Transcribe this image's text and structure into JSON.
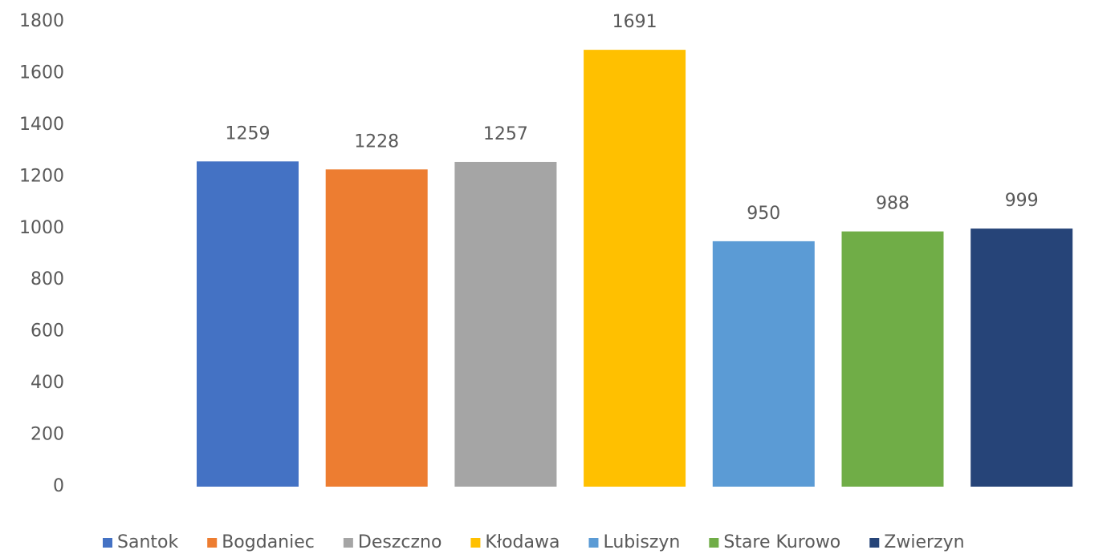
{
  "chart_data": {
    "type": "bar",
    "series": [
      {
        "name": "Santok",
        "color": "#4472c4",
        "values": [
          1259
        ]
      },
      {
        "name": "Bogdaniec",
        "color": "#ed7d31",
        "values": [
          1228
        ]
      },
      {
        "name": "Deszczno",
        "color": "#a5a5a5",
        "values": [
          1257
        ]
      },
      {
        "name": "Kłodawa",
        "color": "#ffc000",
        "values": [
          1691
        ]
      },
      {
        "name": "Lubiszyn",
        "color": "#5b9bd5",
        "values": [
          950
        ]
      },
      {
        "name": "Stare Kurowo",
        "color": "#70ad47",
        "values": [
          988
        ]
      },
      {
        "name": "Zwierzyn",
        "color": "#264478",
        "values": [
          999
        ]
      }
    ],
    "ylim": [
      0,
      1800
    ],
    "yticks": [
      0,
      200,
      400,
      600,
      800,
      1000,
      1200,
      1400,
      1600,
      1800
    ],
    "grid": false
  }
}
